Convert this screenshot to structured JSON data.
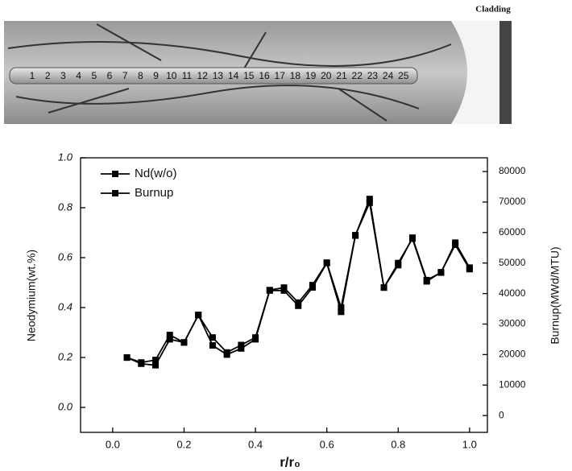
{
  "micrograph": {
    "caption": "Cladding",
    "labels": [
      "1",
      "2",
      "3",
      "4",
      "5",
      "6",
      "7",
      "8",
      "9",
      "10",
      "11",
      "12",
      "13",
      "14",
      "15",
      "16",
      "17",
      "18",
      "19",
      "20",
      "21",
      "22",
      "23",
      "24",
      "25"
    ]
  },
  "chart_data": {
    "type": "line",
    "x_label": "r/r₀",
    "y_label": "Neodymium(wt.%)",
    "y2_label": "Burnup(MWd/MTU)",
    "x": [
      0.04,
      0.08,
      0.12,
      0.16,
      0.2,
      0.24,
      0.28,
      0.32,
      0.36,
      0.4,
      0.44,
      0.48,
      0.52,
      0.56,
      0.6,
      0.64,
      0.68,
      0.72,
      0.76,
      0.8,
      0.84,
      0.88,
      0.92,
      0.96,
      1.0
    ],
    "series": [
      {
        "name": "Nd(w/o)",
        "color": "#000000",
        "values": [
          0.2,
          0.18,
          0.19,
          0.29,
          0.26,
          0.37,
          0.28,
          0.22,
          0.25,
          0.28,
          0.47,
          0.48,
          0.42,
          0.49,
          0.58,
          0.4,
          0.69,
          0.82,
          0.48,
          0.57,
          0.68,
          0.51,
          0.54,
          0.66,
          0.56
        ]
      },
      {
        "name": "Burnup",
        "color": "#000000",
        "axis": "y2",
        "values": [
          19000,
          17000,
          16500,
          25000,
          24000,
          33000,
          23000,
          20000,
          22000,
          25000,
          41000,
          41000,
          36000,
          42000,
          50000,
          34000,
          59000,
          71000,
          42000,
          50000,
          58000,
          44000,
          47000,
          56000,
          48000
        ]
      }
    ],
    "xlim": [
      -0.09,
      1.05
    ],
    "xticks": [
      {
        "value": 0,
        "label": "0.0"
      },
      0.2,
      0.4,
      0.6,
      0.8,
      {
        "value": 1,
        "label": "1.0"
      }
    ],
    "ylim": [
      -0.1,
      1.0
    ],
    "yticks": [
      {
        "value": 0,
        "label": "0.0"
      },
      0.2,
      0.4,
      0.6,
      0.8,
      {
        "value": 1,
        "label": "1.0"
      }
    ],
    "y2lim": [
      -5500,
      84500
    ],
    "y2ticks": [
      0,
      10000,
      20000,
      30000,
      40000,
      50000,
      60000,
      70000,
      80000
    ],
    "legend": "upper-left"
  }
}
